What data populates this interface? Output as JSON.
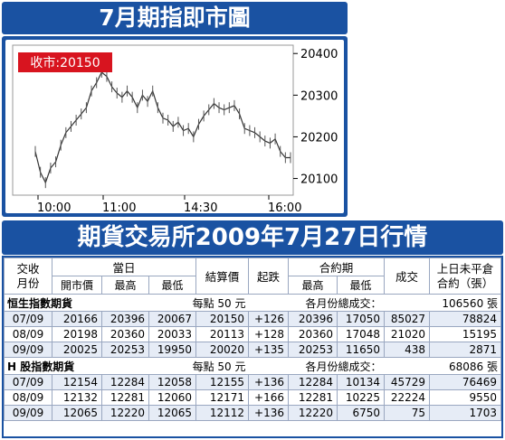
{
  "chart_title": "7月期指即市圖",
  "chart_data": {
    "type": "line",
    "close_label": "收市:20150",
    "y_ticks": [
      "20400",
      "20300",
      "20200",
      "20100"
    ],
    "ylim": [
      20060,
      20420
    ],
    "x_ticks": [
      "10:00",
      "11:00",
      "14:30",
      "16:00"
    ],
    "x": [
      0,
      2,
      4,
      6,
      8,
      10,
      12,
      14,
      16,
      18,
      20,
      22,
      24,
      26,
      28,
      30,
      32,
      34,
      36,
      38,
      40,
      42,
      44,
      46,
      48,
      50,
      52,
      54,
      56,
      58,
      60,
      62,
      64,
      66,
      68,
      70,
      72,
      74,
      76,
      78,
      80,
      82,
      84,
      86,
      88,
      90,
      92,
      94,
      96,
      98,
      100
    ],
    "values": [
      20165,
      20115,
      20090,
      20125,
      20140,
      20180,
      20210,
      20225,
      20240,
      20255,
      20270,
      20310,
      20330,
      20355,
      20345,
      20320,
      20305,
      20295,
      20310,
      20295,
      20270,
      20300,
      20285,
      20310,
      20270,
      20245,
      20240,
      20225,
      20235,
      20215,
      20220,
      20200,
      20230,
      20250,
      20265,
      20280,
      20270,
      20265,
      20270,
      20275,
      20255,
      20220,
      20215,
      20210,
      20200,
      20190,
      20185,
      20195,
      20165,
      20150,
      20150
    ]
  },
  "table_title": "期貨交易所2009年7月27日行情",
  "table": {
    "headers": {
      "contract_month": "交收月份",
      "today": "當日",
      "open": "開市價",
      "high": "最高",
      "low": "最低",
      "settle": "結算價",
      "change": "起跌",
      "contract_period": "合約期",
      "period_high": "最高",
      "period_low": "最低",
      "volume": "成交",
      "open_interest": "上日未平倉合約（張）"
    },
    "sections": [
      {
        "name": "恒生指數期貨",
        "unit": "每點 50 元",
        "total_label": "各月份總成交：",
        "total": "106560 張",
        "rows": [
          [
            "07/09",
            "20166",
            "20396",
            "20067",
            "20150",
            "+126",
            "20396",
            "17050",
            "85027",
            "78824"
          ],
          [
            "08/09",
            "20198",
            "20360",
            "20033",
            "20113",
            "+128",
            "20360",
            "17048",
            "21020",
            "15195"
          ],
          [
            "09/09",
            "20025",
            "20253",
            "19950",
            "20020",
            "+135",
            "20253",
            "11650",
            "438",
            "2871"
          ]
        ]
      },
      {
        "name": "H 股指數期貨",
        "unit": "每點 50 元",
        "total_label": "各月份總成交：",
        "total": "68086 張",
        "rows": [
          [
            "07/09",
            "12154",
            "12284",
            "12058",
            "12155",
            "+136",
            "12284",
            "10134",
            "45729",
            "76469"
          ],
          [
            "08/09",
            "12132",
            "12281",
            "12060",
            "12171",
            "+166",
            "12281",
            "10225",
            "22224",
            "9550"
          ],
          [
            "09/09",
            "12065",
            "12220",
            "12065",
            "12112",
            "+136",
            "12220",
            "6750",
            "75",
            "1703"
          ]
        ]
      }
    ]
  }
}
